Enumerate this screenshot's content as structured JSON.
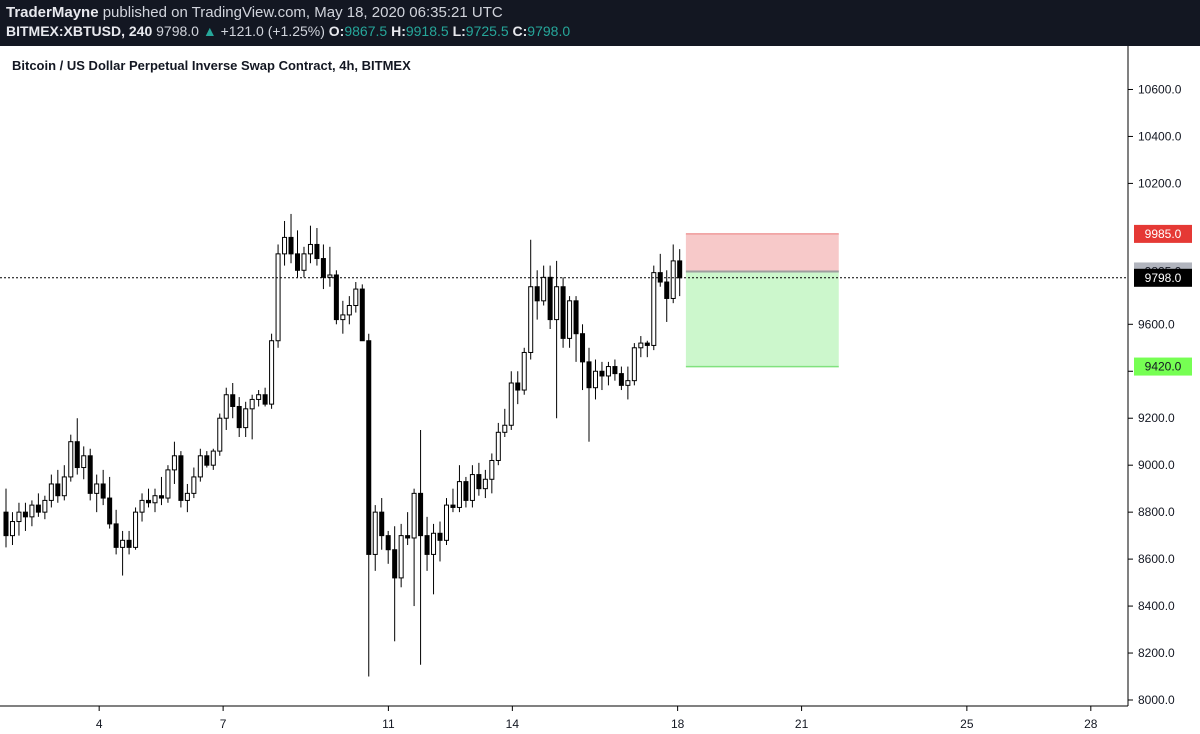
{
  "header": {
    "author": "TraderMayne",
    "published": "published on TradingView.com, May 18, 2020 06:35:21 UTC",
    "symbol": "BITMEX:XBTUSD, 240",
    "last": "9798.0",
    "change_arrow": "▲",
    "change": "+121.0 (+1.25%)",
    "o_label": "O:",
    "o_value": "9867.5",
    "h_label": "H:",
    "h_value": "9918.5",
    "l_label": "L:",
    "l_value": "9725.5",
    "c_label": "C:",
    "c_value": "9798.0"
  },
  "chart_title": "Bitcoin / US Dollar Perpetual Inverse Swap Contract, 4h, BITMEX",
  "colors": {
    "stop_zone": "#f7c9c9",
    "target_zone": "#ccf7cc",
    "stop_badge": "#e53935",
    "target_badge": "#76ff53",
    "entry_badge": "#b2b5be",
    "price_badge": "#000000"
  },
  "chart_data": {
    "type": "candlestick",
    "title": "Bitcoin / US Dollar Perpetual Inverse Swap Contract, 4h, BITMEX",
    "ylim": [
      8000,
      10700
    ],
    "y_ticks": [
      "10600.0",
      "10400.0",
      "10200.0",
      "9600.0",
      "9400.0",
      "9200.0",
      "9000.0",
      "8800.0",
      "8600.0",
      "8400.0",
      "8200.0",
      "8000.0"
    ],
    "y_tick_values": [
      10600,
      10400,
      10200,
      9600,
      9400,
      9200,
      9000,
      8800,
      8600,
      8400,
      8200,
      8000
    ],
    "x_ticks": [
      "4",
      "7",
      "11",
      "14",
      "18",
      "21",
      "25",
      "28"
    ],
    "x_tick_days": [
      4,
      7,
      11,
      14,
      18,
      21,
      25,
      28
    ],
    "x_start_day": 1.6,
    "x_end_day": 28.9,
    "grid": false,
    "current_price": 9798.0,
    "current_price_label": "9798.0",
    "position": {
      "side": "short",
      "entry": 9825.0,
      "entry_label": "9825.0",
      "stop": 9985.0,
      "stop_label": "9985.0",
      "target": 9420.0,
      "target_label": "9420.0",
      "start_day": 18.2,
      "end_day": 21.9
    },
    "candles": [
      {
        "o": 8800,
        "h": 8900,
        "l": 8650,
        "c": 8700
      },
      {
        "o": 8700,
        "h": 8800,
        "l": 8660,
        "c": 8760
      },
      {
        "o": 8760,
        "h": 8840,
        "l": 8700,
        "c": 8800
      },
      {
        "o": 8800,
        "h": 8840,
        "l": 8720,
        "c": 8780
      },
      {
        "o": 8780,
        "h": 8850,
        "l": 8740,
        "c": 8830
      },
      {
        "o": 8830,
        "h": 8880,
        "l": 8780,
        "c": 8800
      },
      {
        "o": 8800,
        "h": 8870,
        "l": 8770,
        "c": 8850
      },
      {
        "o": 8850,
        "h": 8960,
        "l": 8820,
        "c": 8920
      },
      {
        "o": 8920,
        "h": 8980,
        "l": 8840,
        "c": 8870
      },
      {
        "o": 8870,
        "h": 9000,
        "l": 8850,
        "c": 8950
      },
      {
        "o": 8950,
        "h": 9130,
        "l": 8930,
        "c": 9100
      },
      {
        "o": 9100,
        "h": 9200,
        "l": 8960,
        "c": 8990
      },
      {
        "o": 8990,
        "h": 9080,
        "l": 8940,
        "c": 9040
      },
      {
        "o": 9040,
        "h": 9070,
        "l": 8850,
        "c": 8880
      },
      {
        "o": 8880,
        "h": 8960,
        "l": 8800,
        "c": 8920
      },
      {
        "o": 8920,
        "h": 8980,
        "l": 8830,
        "c": 8860
      },
      {
        "o": 8860,
        "h": 8950,
        "l": 8730,
        "c": 8750
      },
      {
        "o": 8750,
        "h": 8810,
        "l": 8620,
        "c": 8650
      },
      {
        "o": 8650,
        "h": 8720,
        "l": 8530,
        "c": 8680
      },
      {
        "o": 8680,
        "h": 8720,
        "l": 8620,
        "c": 8650
      },
      {
        "o": 8650,
        "h": 8820,
        "l": 8640,
        "c": 8800
      },
      {
        "o": 8800,
        "h": 8880,
        "l": 8760,
        "c": 8850
      },
      {
        "o": 8850,
        "h": 8900,
        "l": 8820,
        "c": 8840
      },
      {
        "o": 8840,
        "h": 8900,
        "l": 8800,
        "c": 8870
      },
      {
        "o": 8870,
        "h": 8950,
        "l": 8830,
        "c": 8860
      },
      {
        "o": 8860,
        "h": 9000,
        "l": 8840,
        "c": 8980
      },
      {
        "o": 8980,
        "h": 9100,
        "l": 8920,
        "c": 9040
      },
      {
        "o": 9040,
        "h": 9060,
        "l": 8820,
        "c": 8850
      },
      {
        "o": 8850,
        "h": 8920,
        "l": 8800,
        "c": 8880
      },
      {
        "o": 8880,
        "h": 8990,
        "l": 8860,
        "c": 8950
      },
      {
        "o": 8950,
        "h": 9070,
        "l": 8930,
        "c": 9040
      },
      {
        "o": 9040,
        "h": 9060,
        "l": 8990,
        "c": 9000
      },
      {
        "o": 9000,
        "h": 9070,
        "l": 8980,
        "c": 9060
      },
      {
        "o": 9060,
        "h": 9220,
        "l": 9040,
        "c": 9200
      },
      {
        "o": 9200,
        "h": 9330,
        "l": 9150,
        "c": 9300
      },
      {
        "o": 9300,
        "h": 9350,
        "l": 9200,
        "c": 9250
      },
      {
        "o": 9250,
        "h": 9290,
        "l": 9120,
        "c": 9160
      },
      {
        "o": 9160,
        "h": 9270,
        "l": 9120,
        "c": 9240
      },
      {
        "o": 9240,
        "h": 9300,
        "l": 9110,
        "c": 9280
      },
      {
        "o": 9280,
        "h": 9320,
        "l": 9250,
        "c": 9300
      },
      {
        "o": 9300,
        "h": 9330,
        "l": 9250,
        "c": 9260
      },
      {
        "o": 9260,
        "h": 9560,
        "l": 9240,
        "c": 9530
      },
      {
        "o": 9530,
        "h": 9940,
        "l": 9500,
        "c": 9900
      },
      {
        "o": 9900,
        "h": 10040,
        "l": 9850,
        "c": 9970
      },
      {
        "o": 9970,
        "h": 10070,
        "l": 9860,
        "c": 9900
      },
      {
        "o": 9900,
        "h": 10000,
        "l": 9800,
        "c": 9830
      },
      {
        "o": 9830,
        "h": 9930,
        "l": 9800,
        "c": 9900
      },
      {
        "o": 9900,
        "h": 10020,
        "l": 9860,
        "c": 9940
      },
      {
        "o": 9940,
        "h": 10010,
        "l": 9850,
        "c": 9880
      },
      {
        "o": 9880,
        "h": 9940,
        "l": 9750,
        "c": 9800
      },
      {
        "o": 9800,
        "h": 9930,
        "l": 9760,
        "c": 9810
      },
      {
        "o": 9810,
        "h": 9830,
        "l": 9600,
        "c": 9620
      },
      {
        "o": 9620,
        "h": 9700,
        "l": 9560,
        "c": 9640
      },
      {
        "o": 9640,
        "h": 9720,
        "l": 9600,
        "c": 9680
      },
      {
        "o": 9680,
        "h": 9780,
        "l": 9650,
        "c": 9750
      },
      {
        "o": 9750,
        "h": 9770,
        "l": 9550,
        "c": 9530
      },
      {
        "o": 9530,
        "h": 9560,
        "l": 8100,
        "c": 8620
      },
      {
        "o": 8620,
        "h": 8830,
        "l": 8550,
        "c": 8800
      },
      {
        "o": 8800,
        "h": 8860,
        "l": 8640,
        "c": 8700
      },
      {
        "o": 8700,
        "h": 8720,
        "l": 8580,
        "c": 8640
      },
      {
        "o": 8640,
        "h": 8740,
        "l": 8250,
        "c": 8520
      },
      {
        "o": 8520,
        "h": 8750,
        "l": 8480,
        "c": 8700
      },
      {
        "o": 8700,
        "h": 8800,
        "l": 8660,
        "c": 8690
      },
      {
        "o": 8690,
        "h": 8900,
        "l": 8400,
        "c": 8880
      },
      {
        "o": 8880,
        "h": 9150,
        "l": 8150,
        "c": 8700
      },
      {
        "o": 8700,
        "h": 8780,
        "l": 8550,
        "c": 8620
      },
      {
        "o": 8620,
        "h": 8750,
        "l": 8450,
        "c": 8710
      },
      {
        "o": 8710,
        "h": 8760,
        "l": 8590,
        "c": 8680
      },
      {
        "o": 8680,
        "h": 8860,
        "l": 8660,
        "c": 8830
      },
      {
        "o": 8830,
        "h": 8900,
        "l": 8800,
        "c": 8820
      },
      {
        "o": 8820,
        "h": 9000,
        "l": 8800,
        "c": 8930
      },
      {
        "o": 8930,
        "h": 8950,
        "l": 8820,
        "c": 8850
      },
      {
        "o": 8850,
        "h": 9000,
        "l": 8820,
        "c": 8960
      },
      {
        "o": 8960,
        "h": 9010,
        "l": 8870,
        "c": 8900
      },
      {
        "o": 8900,
        "h": 8980,
        "l": 8860,
        "c": 8940
      },
      {
        "o": 8940,
        "h": 9050,
        "l": 8880,
        "c": 9020
      },
      {
        "o": 9020,
        "h": 9180,
        "l": 9000,
        "c": 9140
      },
      {
        "o": 9140,
        "h": 9240,
        "l": 9120,
        "c": 9170
      },
      {
        "o": 9170,
        "h": 9400,
        "l": 9150,
        "c": 9350
      },
      {
        "o": 9350,
        "h": 9400,
        "l": 9260,
        "c": 9320
      },
      {
        "o": 9320,
        "h": 9500,
        "l": 9300,
        "c": 9480
      },
      {
        "o": 9480,
        "h": 9960,
        "l": 9450,
        "c": 9760
      },
      {
        "o": 9760,
        "h": 9830,
        "l": 9620,
        "c": 9700
      },
      {
        "o": 9700,
        "h": 9850,
        "l": 9680,
        "c": 9800
      },
      {
        "o": 9800,
        "h": 9850,
        "l": 9580,
        "c": 9620
      },
      {
        "o": 9620,
        "h": 9870,
        "l": 9200,
        "c": 9760
      },
      {
        "o": 9760,
        "h": 9800,
        "l": 9500,
        "c": 9540
      },
      {
        "o": 9540,
        "h": 9720,
        "l": 9500,
        "c": 9700
      },
      {
        "o": 9700,
        "h": 9720,
        "l": 9440,
        "c": 9560
      },
      {
        "o": 9560,
        "h": 9600,
        "l": 9320,
        "c": 9440
      },
      {
        "o": 9440,
        "h": 9500,
        "l": 9100,
        "c": 9330
      },
      {
        "o": 9330,
        "h": 9450,
        "l": 9280,
        "c": 9400
      },
      {
        "o": 9400,
        "h": 9440,
        "l": 9320,
        "c": 9380
      },
      {
        "o": 9380,
        "h": 9440,
        "l": 9340,
        "c": 9420
      },
      {
        "o": 9420,
        "h": 9450,
        "l": 9360,
        "c": 9390
      },
      {
        "o": 9390,
        "h": 9420,
        "l": 9320,
        "c": 9340
      },
      {
        "o": 9340,
        "h": 9420,
        "l": 9280,
        "c": 9360
      },
      {
        "o": 9360,
        "h": 9520,
        "l": 9340,
        "c": 9500
      },
      {
        "o": 9500,
        "h": 9550,
        "l": 9460,
        "c": 9520
      },
      {
        "o": 9520,
        "h": 9530,
        "l": 9460,
        "c": 9510
      },
      {
        "o": 9510,
        "h": 9850,
        "l": 9490,
        "c": 9820
      },
      {
        "o": 9820,
        "h": 9900,
        "l": 9760,
        "c": 9780
      },
      {
        "o": 9780,
        "h": 9830,
        "l": 9610,
        "c": 9710
      },
      {
        "o": 9710,
        "h": 9940,
        "l": 9690,
        "c": 9870
      },
      {
        "o": 9870,
        "h": 9920,
        "l": 9720,
        "c": 9798
      }
    ]
  }
}
